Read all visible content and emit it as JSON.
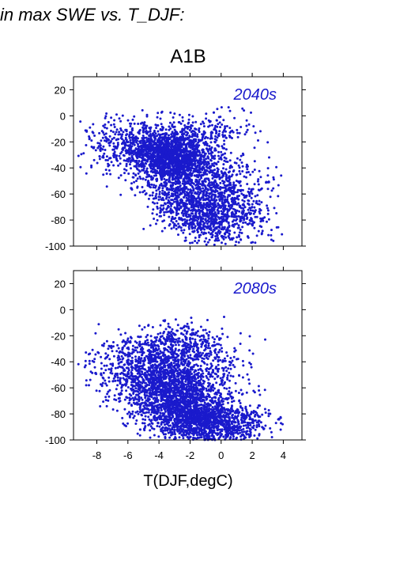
{
  "page": {
    "heading": "in max SWE vs. T_DJF:",
    "scenario": "A1B"
  },
  "chart_data": [
    {
      "type": "scatter",
      "panel_label": "2040s",
      "xlim": [
        -9.5,
        5.2
      ],
      "ylim": [
        -100,
        30
      ],
      "yticks": [
        20,
        0,
        -20,
        -40,
        -60,
        -80,
        -100
      ],
      "xticks": [
        -8,
        -6,
        -4,
        -2,
        0,
        2,
        4
      ],
      "xticklabels_shown": false,
      "xlabel": "",
      "color": "#1a1acc",
      "clouds": [
        {
          "cx": -3.2,
          "cy": -30,
          "sx": 1.3,
          "sy": 10,
          "rho": -0.1,
          "n": 1500
        },
        {
          "cx": -2.0,
          "cy": -55,
          "sx": 1.6,
          "sy": 17,
          "rho": -0.35,
          "n": 1100
        },
        {
          "cx": -0.8,
          "cy": -78,
          "sx": 1.5,
          "sy": 10,
          "rho": -0.2,
          "n": 500
        },
        {
          "cx": 1.0,
          "cy": -60,
          "sx": 1.4,
          "sy": 20,
          "rho": -0.4,
          "n": 350
        },
        {
          "cx": -6.0,
          "cy": -22,
          "sx": 1.6,
          "sy": 10,
          "rho": 0.1,
          "n": 350
        },
        {
          "cx": -0.8,
          "cy": -12,
          "sx": 1.5,
          "sy": 8,
          "rho": 0.0,
          "n": 150
        }
      ]
    },
    {
      "type": "scatter",
      "panel_label": "2080s",
      "xlim": [
        -9.5,
        5.2
      ],
      "ylim": [
        -100,
        30
      ],
      "yticks": [
        20,
        0,
        -20,
        -40,
        -60,
        -80,
        -100
      ],
      "xticks": [
        -8,
        -6,
        -4,
        -2,
        0,
        2,
        4
      ],
      "xticklabels": [
        "-8",
        "-6",
        "-4",
        "-2",
        "0",
        "2",
        "4"
      ],
      "xlabel": "T(DJF,degC)",
      "color": "#1a1acc",
      "clouds": [
        {
          "cx": -3.0,
          "cy": -65,
          "sx": 1.6,
          "sy": 16,
          "rho": -0.3,
          "n": 1700
        },
        {
          "cx": -1.5,
          "cy": -85,
          "sx": 1.5,
          "sy": 9,
          "rho": -0.2,
          "n": 900
        },
        {
          "cx": -5.5,
          "cy": -45,
          "sx": 1.6,
          "sy": 13,
          "rho": 0.0,
          "n": 450
        },
        {
          "cx": -3.0,
          "cy": -28,
          "sx": 1.3,
          "sy": 9,
          "rho": 0.0,
          "n": 300
        },
        {
          "cx": 1.0,
          "cy": -85,
          "sx": 1.3,
          "sy": 10,
          "rho": -0.3,
          "n": 300
        },
        {
          "cx": -1.0,
          "cy": -40,
          "sx": 1.6,
          "sy": 14,
          "rho": -0.2,
          "n": 250
        }
      ]
    }
  ]
}
